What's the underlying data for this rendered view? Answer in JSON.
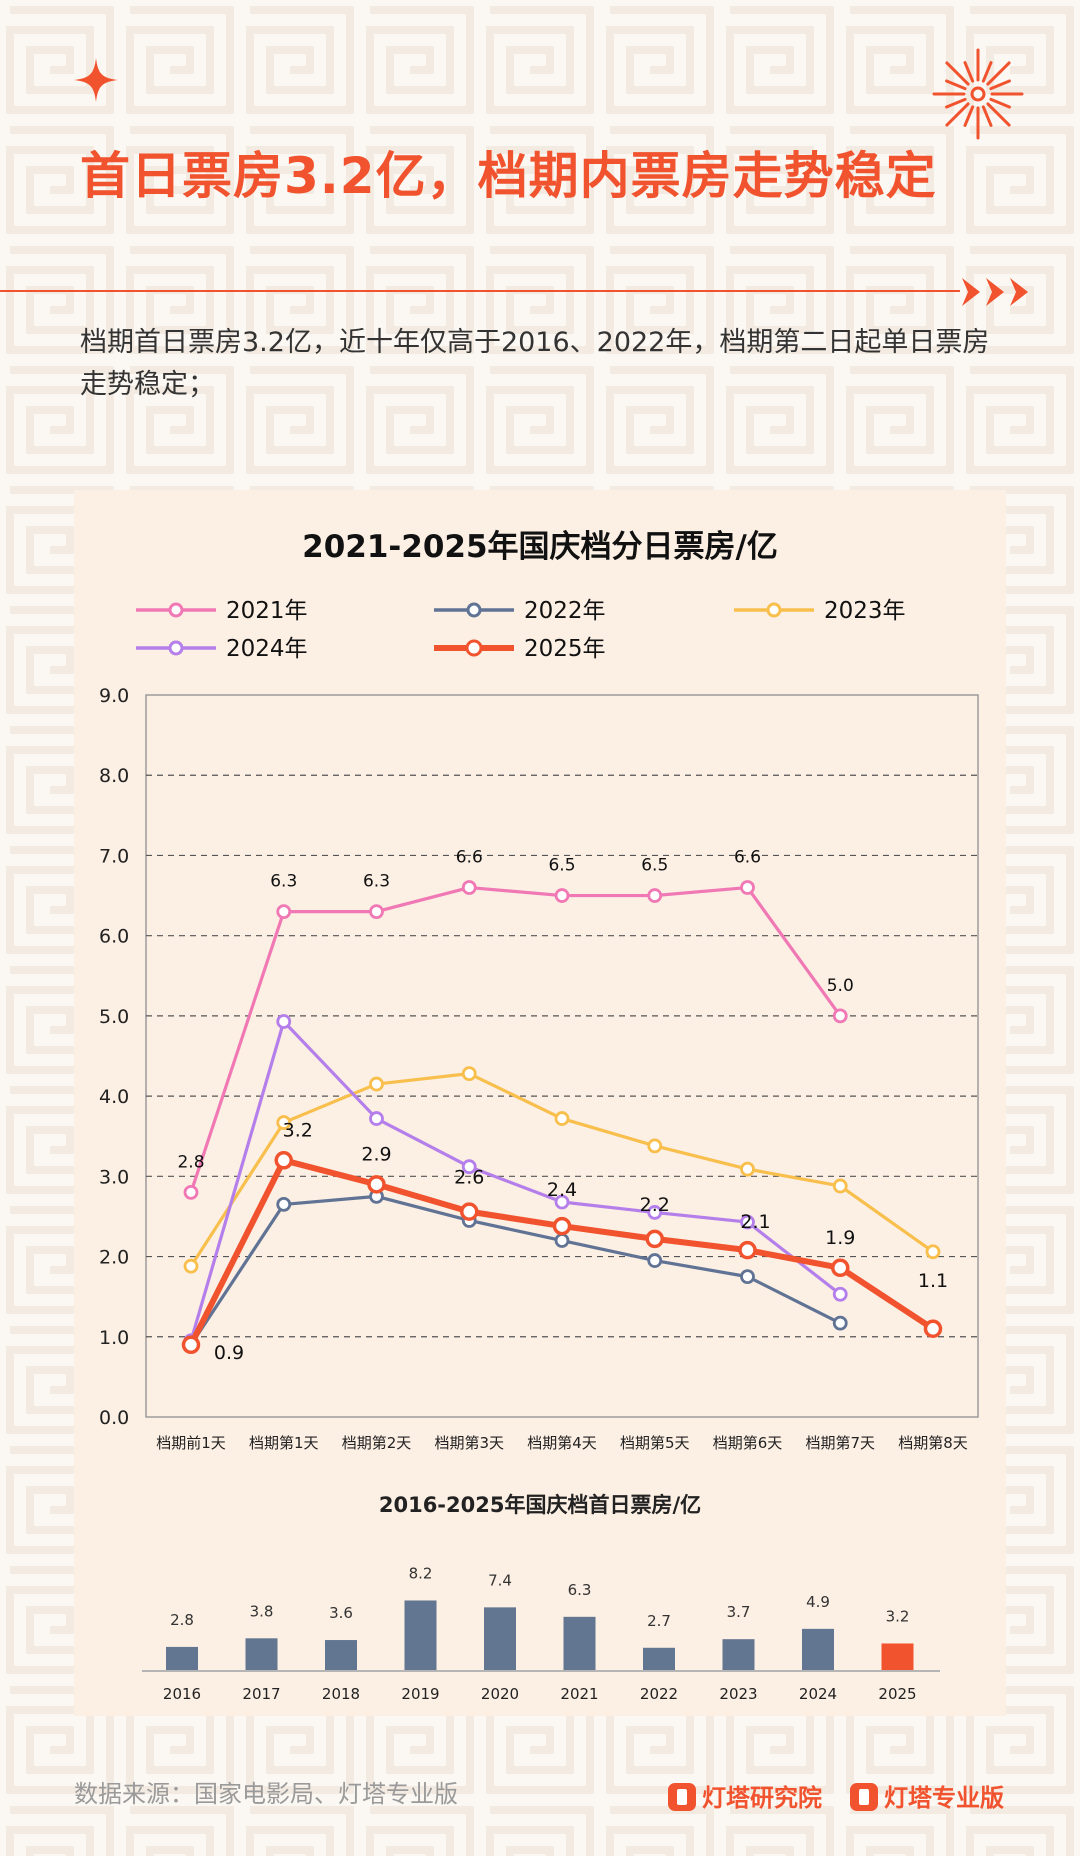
{
  "headline": "首日票房3.2亿，档期内票房走势稳定",
  "subtitle": "档期首日票房3.2亿，近十年仅高于2016、2022年，档期第二日起单日票房走势稳定；",
  "source": "数据来源：国家电影局、灯塔专业版",
  "brand": {
    "research": "灯塔研究院",
    "pro": "灯塔专业版"
  },
  "chart_data": [
    {
      "type": "line",
      "title": "2021-2025年国庆档分日票房/亿",
      "categories": [
        "档期前1天",
        "档期第1天",
        "档期第2天",
        "档期第3天",
        "档期第4天",
        "档期第5天",
        "档期第6天",
        "档期第7天",
        "档期第8天"
      ],
      "ylim": [
        0,
        9
      ],
      "yticks": [
        "0.0",
        "1.0",
        "2.0",
        "3.0",
        "4.0",
        "5.0",
        "6.0",
        "7.0",
        "8.0",
        "9.0"
      ],
      "grid": true,
      "legend_position": "top",
      "series": [
        {
          "name": "2021年",
          "color": "#f078b4",
          "values": [
            2.8,
            6.3,
            6.3,
            6.6,
            6.5,
            6.5,
            6.6,
            5.0,
            null
          ],
          "labels": [
            "2.8",
            "6.3",
            "6.3",
            "6.6",
            "6.5",
            "6.5",
            "6.6",
            "5.0",
            null
          ]
        },
        {
          "name": "2022年",
          "color": "#607394",
          "values": [
            0.9,
            2.65,
            2.75,
            2.45,
            2.2,
            1.95,
            1.75,
            1.17,
            null
          ],
          "labels": [
            null,
            null,
            null,
            null,
            null,
            null,
            null,
            null,
            null
          ]
        },
        {
          "name": "2023年",
          "color": "#f8bf4c",
          "values": [
            1.88,
            3.67,
            4.15,
            4.28,
            3.72,
            3.38,
            3.09,
            2.88,
            2.06
          ],
          "labels": [
            null,
            null,
            null,
            null,
            null,
            null,
            null,
            null,
            null
          ]
        },
        {
          "name": "2024年",
          "color": "#b47fea",
          "values": [
            0.95,
            4.93,
            3.72,
            3.12,
            2.68,
            2.55,
            2.43,
            1.53,
            null
          ],
          "labels": [
            null,
            null,
            null,
            null,
            null,
            null,
            null,
            null,
            null
          ]
        },
        {
          "name": "2025年",
          "color": "#f0532e",
          "values": [
            0.9,
            3.2,
            2.9,
            2.56,
            2.38,
            2.22,
            2.08,
            1.86,
            1.1
          ],
          "labels": [
            "0.9",
            "3.2",
            "2.9",
            "2.6",
            "2.4",
            "2.2",
            "2.1",
            "1.9",
            "1.1"
          ]
        }
      ]
    },
    {
      "type": "bar",
      "title": "2016-2025年国庆档首日票房/亿",
      "categories": [
        "2016",
        "2017",
        "2018",
        "2019",
        "2020",
        "2021",
        "2022",
        "2023",
        "2024",
        "2025"
      ],
      "values": [
        2.8,
        3.8,
        3.6,
        8.2,
        7.4,
        6.3,
        2.7,
        3.7,
        4.9,
        3.2
      ],
      "labels": [
        "2.8",
        "3.8",
        "3.6",
        "8.2",
        "7.4",
        "6.3",
        "2.7",
        "3.7",
        "4.9",
        "3.2"
      ],
      "colors": {
        "default": "#627591",
        "highlight": "#f0532e"
      },
      "highlight": "2025"
    }
  ]
}
